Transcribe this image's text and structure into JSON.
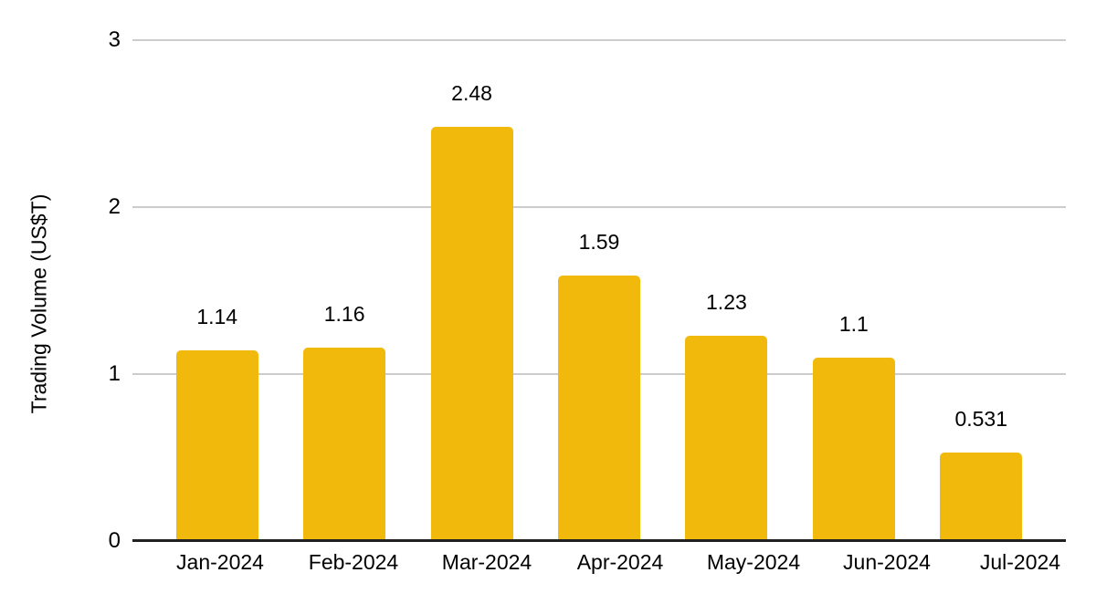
{
  "chart_data": {
    "type": "bar",
    "categories": [
      "Jan-2024",
      "Feb-2024",
      "Mar-2024",
      "Apr-2024",
      "May-2024",
      "Jun-2024",
      "Jul-2024"
    ],
    "values": [
      1.14,
      1.16,
      2.48,
      1.59,
      1.23,
      1.1,
      0.531
    ],
    "value_labels": [
      "1.14",
      "1.16",
      "2.48",
      "1.59",
      "1.23",
      "1.1",
      "0.531"
    ],
    "title": "",
    "xlabel": "",
    "ylabel": "Trading Volume (US$T)",
    "ylim": [
      0,
      3
    ],
    "yticks": [
      0,
      1,
      2,
      3
    ],
    "ytick_labels": [
      "0",
      "1",
      "2",
      "3"
    ],
    "grid": "horizontal",
    "legend": "none",
    "bar_color": "#F0B90B"
  },
  "colors": {
    "bar": "#F0B90B",
    "gridline": "#cccccc",
    "axis": "#212121",
    "text": "#000000",
    "background": "#ffffff"
  }
}
